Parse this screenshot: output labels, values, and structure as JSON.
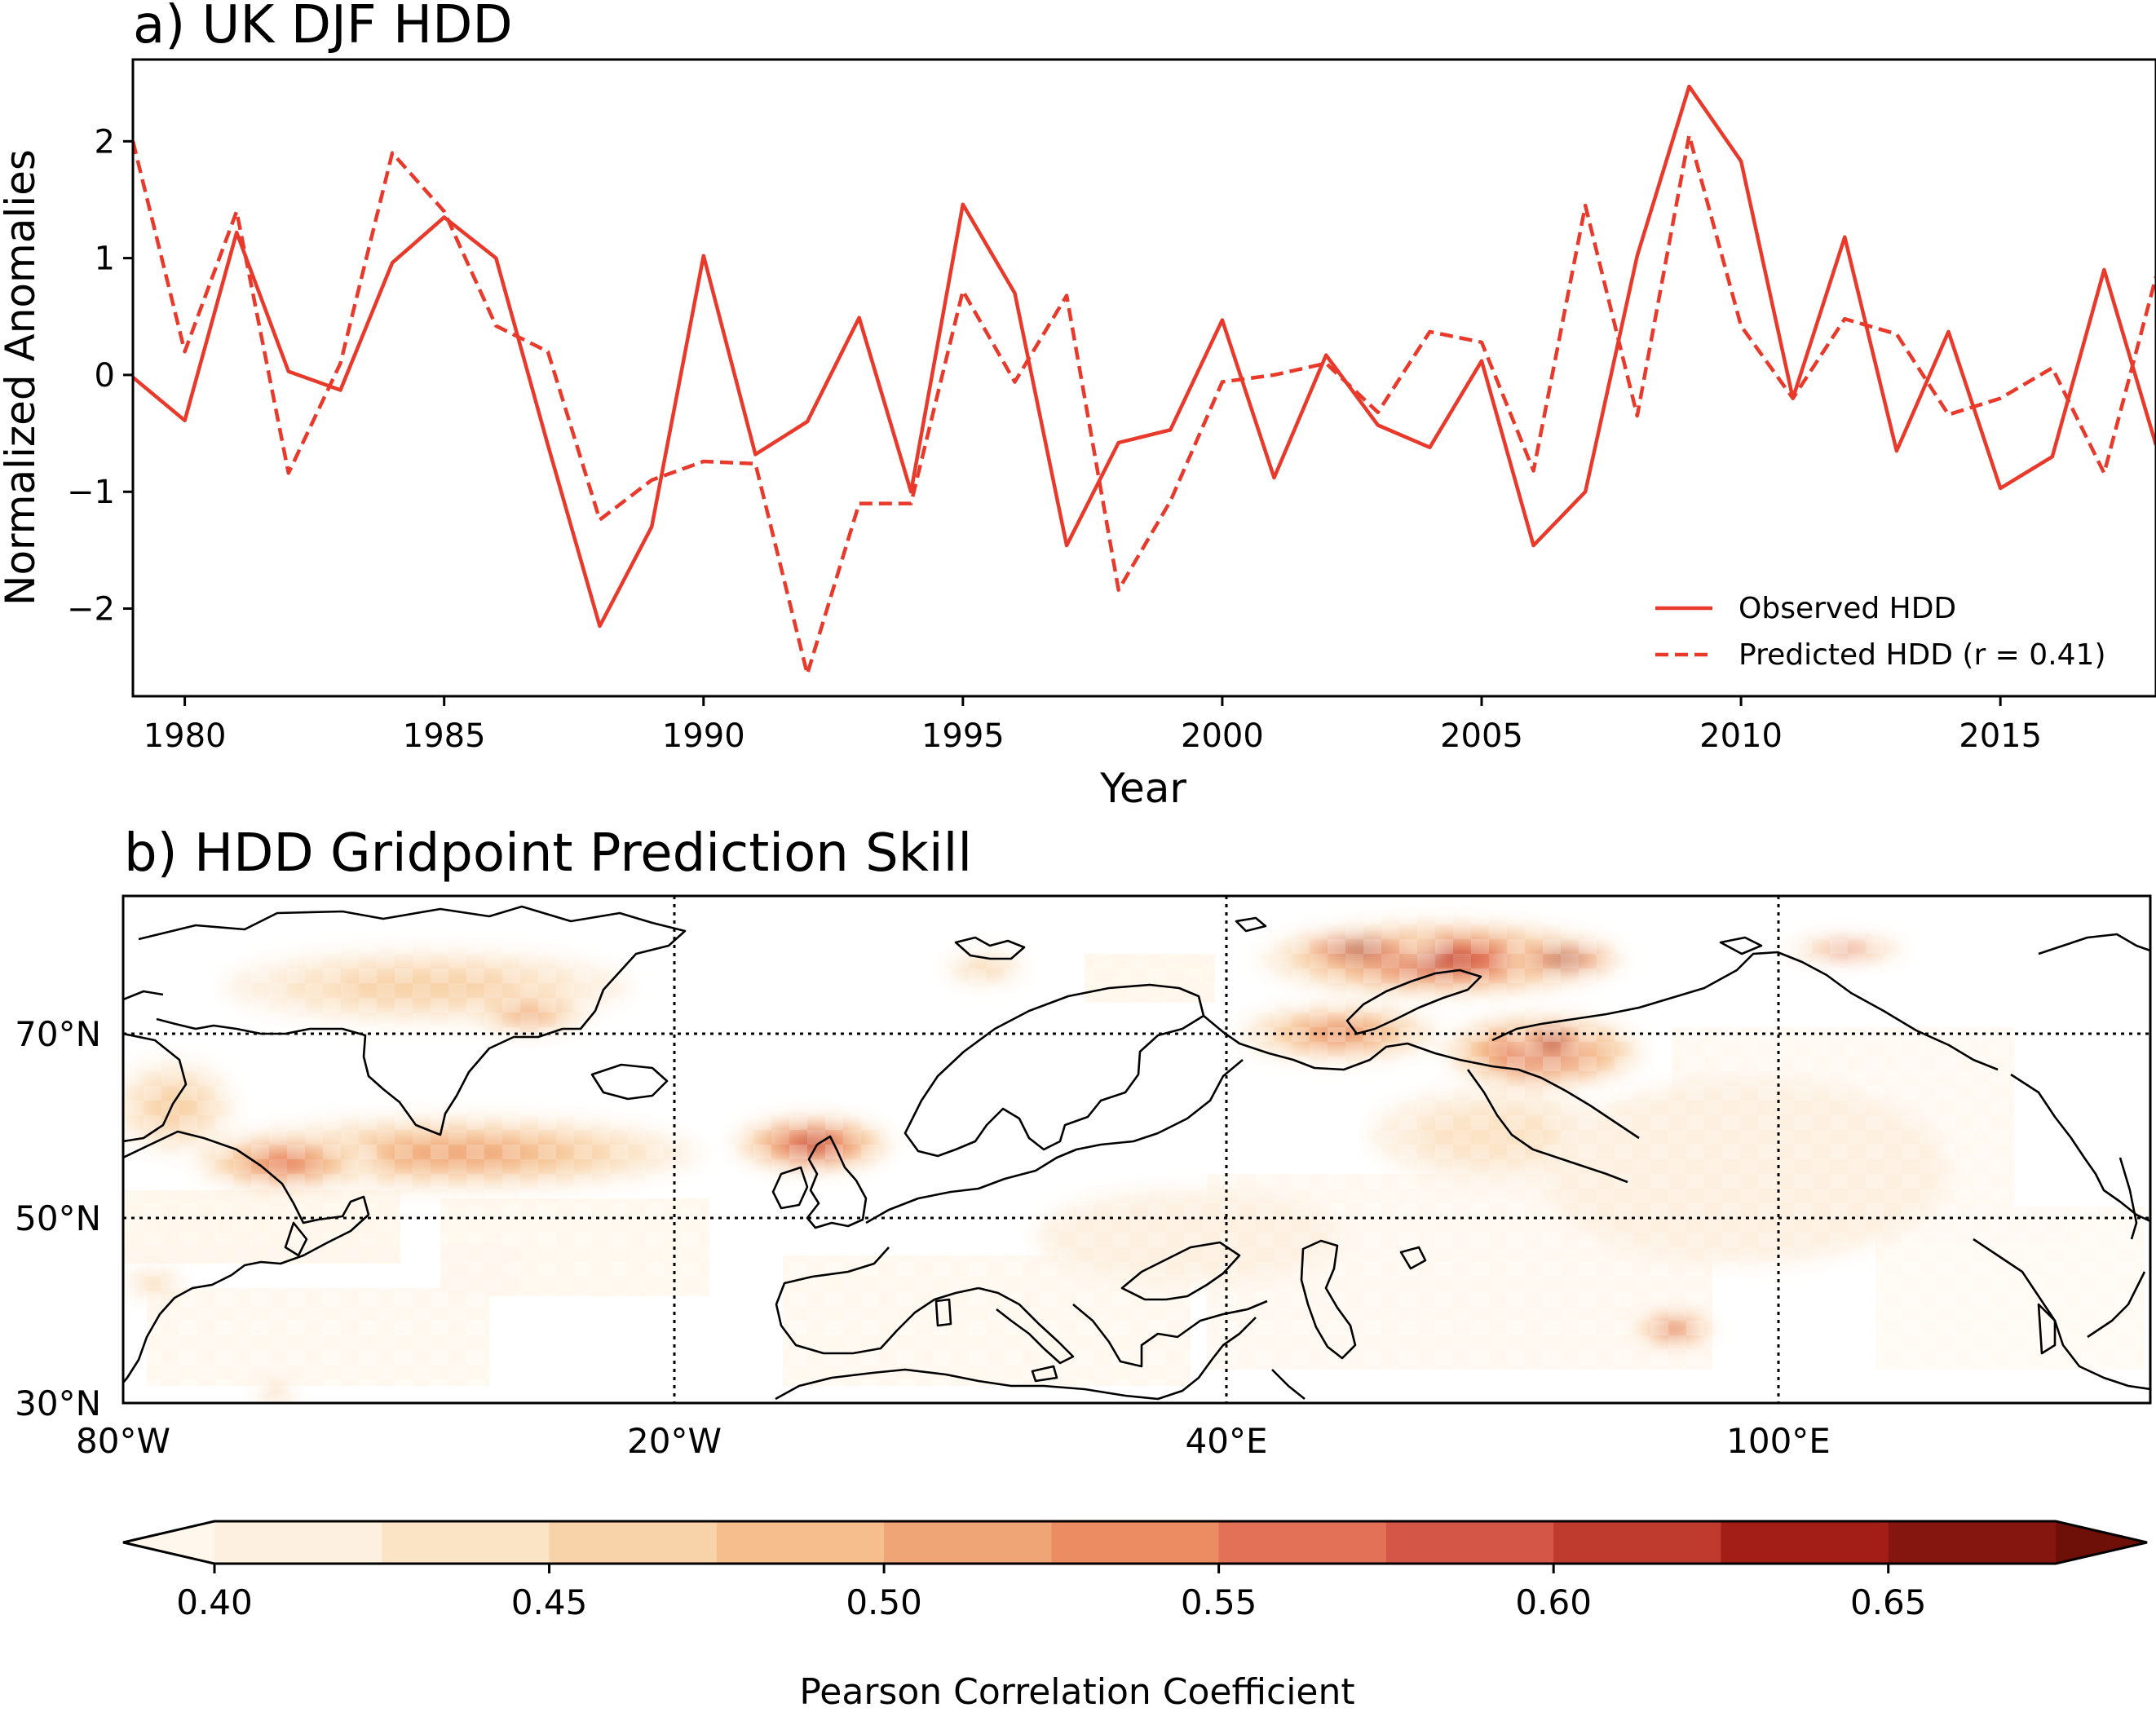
{
  "chart_data": [
    {
      "type": "line",
      "title": "a) UK DJF HDD",
      "xlabel": "Year",
      "ylabel": "Normalized Anomalies",
      "xlim": [
        1979,
        2018
      ],
      "ylim": [
        -2.75,
        2.7
      ],
      "xticks": [
        "1980",
        "1985",
        "1990",
        "1995",
        "2000",
        "2005",
        "2010",
        "2015"
      ],
      "yticks": [
        "−2",
        "−1",
        "0",
        "1",
        "2"
      ],
      "legend_position": "lower-right",
      "x": [
        1979,
        1980,
        1981,
        1982,
        1983,
        1984,
        1985,
        1986,
        1987,
        1988,
        1989,
        1990,
        1991,
        1992,
        1993,
        1994,
        1995,
        1996,
        1997,
        1998,
        1999,
        2000,
        2001,
        2002,
        2003,
        2004,
        2005,
        2006,
        2007,
        2008,
        2009,
        2010,
        2011,
        2012,
        2013,
        2014,
        2015,
        2016,
        2017,
        2018
      ],
      "series": [
        {
          "name": "Observed HDD",
          "style": "solid",
          "color": "#e8392b",
          "values": [
            -0.02,
            -0.39,
            1.22,
            0.03,
            -0.13,
            0.96,
            1.35,
            1.0,
            -0.6,
            -2.15,
            -1.3,
            1.02,
            -0.68,
            -0.4,
            0.49,
            -1.0,
            1.46,
            0.7,
            -1.46,
            -0.58,
            -0.47,
            0.47,
            -0.88,
            0.17,
            -0.43,
            -0.62,
            0.12,
            -1.46,
            -1.0,
            1.02,
            2.47,
            1.83,
            -0.2,
            1.18,
            -0.65,
            0.37,
            -0.97,
            -0.7,
            0.9,
            -0.6
          ]
        },
        {
          "name": "Predicted HDD (r = 0.41)",
          "style": "dashed",
          "color": "#e8392b",
          "values": [
            2.0,
            0.2,
            1.4,
            -0.84,
            0.1,
            1.9,
            1.4,
            0.42,
            0.2,
            -1.24,
            -0.9,
            -0.74,
            -0.76,
            -2.56,
            -1.1,
            -1.1,
            0.72,
            -0.06,
            0.68,
            -1.84,
            -1.08,
            -0.06,
            0.0,
            0.1,
            -0.32,
            0.37,
            0.28,
            -0.82,
            1.45,
            -0.35,
            2.05,
            0.42,
            -0.2,
            0.48,
            0.35,
            -0.34,
            -0.2,
            0.06,
            -0.84,
            0.84
          ]
        }
      ]
    },
    {
      "type": "heatmap",
      "title": "b) HDD Gridpoint Prediction Skill",
      "colorbar_label": "Pearson Correlation Coefficient",
      "lon_ticks": [
        "80°W",
        "20°W",
        "40°E",
        "100°E"
      ],
      "lat_ticks": [
        "70°N",
        "50°N",
        "30°N"
      ],
      "lon_range": [
        -80,
        120
      ],
      "lat_range": [
        30,
        85
      ],
      "colorbar_ticks": [
        "0.40",
        "0.45",
        "0.50",
        "0.55",
        "0.60",
        "0.65"
      ],
      "levels": [
        0.4,
        0.425,
        0.45,
        0.475,
        0.5,
        0.525,
        0.55,
        0.575,
        0.6,
        0.625,
        0.65,
        0.675
      ],
      "level_colors": [
        "#fdf0e0",
        "#fbe3c6",
        "#f8d2a8",
        "#f5be8c",
        "#f0a577",
        "#ec8c62",
        "#e37157",
        "#d45646",
        "#bf3b2d",
        "#a41e18",
        "#85150f"
      ],
      "under_color": "#fff7ec",
      "over_color": "#6e0f08",
      "regions": [
        {
          "name": "north-atlantic",
          "lon": -47,
          "lat": 57,
          "rlon": 24,
          "rlat": 4,
          "value": 0.51
        },
        {
          "name": "labrador-sea",
          "lon": -64,
          "lat": 56,
          "rlon": 9,
          "rlat": 3,
          "value": 0.55
        },
        {
          "name": "iceland-rockall",
          "lon": -12,
          "lat": 58,
          "rlon": 8,
          "rlat": 3,
          "value": 0.6
        },
        {
          "name": "greenland-north",
          "lon": -50,
          "lat": 75,
          "rlon": 20,
          "rlat": 4,
          "value": 0.46
        },
        {
          "name": "greenland-east",
          "lon": -40,
          "lat": 72,
          "rlon": 6,
          "rlat": 2,
          "value": 0.5
        },
        {
          "name": "labrador-coast",
          "lon": -75,
          "lat": 62,
          "rlon": 6,
          "rlat": 5,
          "value": 0.47
        },
        {
          "name": "barents-kara",
          "lon": 50,
          "lat": 78,
          "rlon": 18,
          "rlat": 4,
          "value": 0.6
        },
        {
          "name": "barents-core",
          "lon": 42,
          "lat": 79,
          "rlon": 8,
          "rlat": 1.5,
          "value": 0.67
        },
        {
          "name": "kara-sea",
          "lon": 62,
          "lat": 78,
          "rlon": 6,
          "rlat": 1.5,
          "value": 0.66
        },
        {
          "name": "west-siberia",
          "lon": 60,
          "lat": 68,
          "rlon": 10,
          "rlat": 4,
          "value": 0.6
        },
        {
          "name": "west-siberia-core",
          "lon": 61,
          "lat": 69,
          "rlon": 4,
          "rlat": 2,
          "value": 0.66
        },
        {
          "name": "white-sea",
          "lon": 40,
          "lat": 70,
          "rlon": 10,
          "rlat": 3,
          "value": 0.53
        },
        {
          "name": "urals-south",
          "lon": 55,
          "lat": 59,
          "rlon": 12,
          "rlat": 5,
          "value": 0.43
        },
        {
          "name": "caspian-east",
          "lon": 73,
          "lat": 38,
          "rlon": 4,
          "rlat": 1.6,
          "value": 0.58
        },
        {
          "name": "arctic-east",
          "lon": 90,
          "lat": 79,
          "rlon": 6,
          "rlat": 1,
          "value": 0.55
        },
        {
          "name": "svalbard-west",
          "lon": 5,
          "lat": 77,
          "rlon": 4,
          "rlat": 1.5,
          "value": 0.47
        },
        {
          "name": "new-england",
          "lon": -77,
          "lat": 43,
          "rlon": 3,
          "rlat": 1.2,
          "value": 0.46
        },
        {
          "name": "atlantic-south",
          "lon": -65,
          "lat": 31,
          "rlon": 2,
          "rlat": 1,
          "value": 0.47
        },
        {
          "name": "central-europe",
          "lon": 25,
          "lat": 48,
          "rlon": 15,
          "rlat": 5,
          "value": 0.41
        },
        {
          "name": "central-asia",
          "lon": 80,
          "lat": 55,
          "rlon": 20,
          "rlat": 10,
          "value": 0.41
        }
      ]
    }
  ]
}
